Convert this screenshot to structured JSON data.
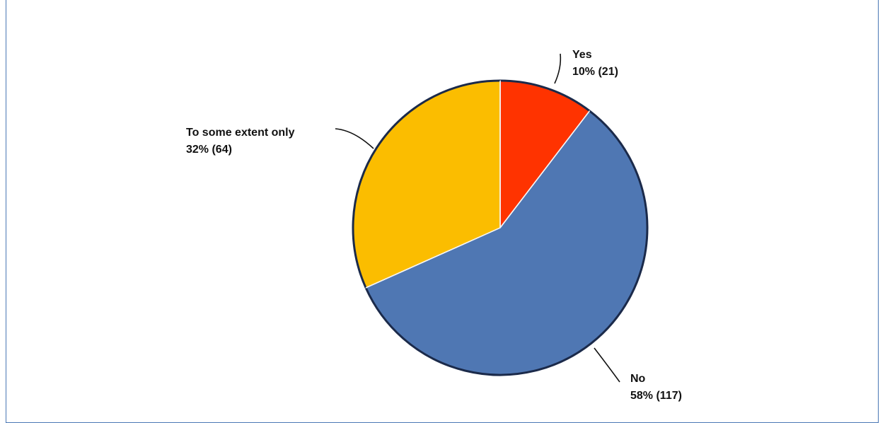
{
  "chart_data": {
    "type": "pie",
    "title": "",
    "slices": [
      {
        "label": "Yes",
        "percent_label": "10% (21)",
        "value": 21,
        "color": "#ff3300"
      },
      {
        "label": "No",
        "percent_label": "58% (117)",
        "value": 117,
        "color": "#4f77b3"
      },
      {
        "label": "To some extent only",
        "percent_label": "32% (64)",
        "value": 64,
        "color": "#fbbd00"
      }
    ],
    "start_angle": "12 o'clock",
    "direction": "clockwise",
    "legend": "none (labels attached to slices)"
  }
}
